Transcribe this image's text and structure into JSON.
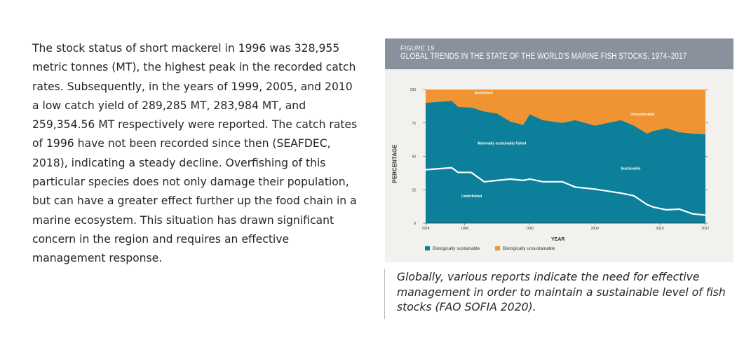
{
  "body_text": "The stock status of short mackerel in 1996 was 328,955 metric tonnes (MT), the highest peak in the recorded catch rates. Subsequently, in the years of 1999, 2005, and 2010 a low catch yield of 289,285 MT, 283,984 MT, and 259,354.56 MT respectively were reported. The catch rates of 1996 have not been recorded since then (SEAFDEC, 2018), indicating a steady decline. Overfishing of this particular species does not only damage their population, but can have a greater effect further up the food chain in a marine ecosystem. This situation has drawn significant concern in the region and requires an effective management response.",
  "figure": {
    "number": "FIGURE 19",
    "title": "GLOBAL TRENDS IN THE STATE OF THE WORLD'S MARINE FISH STOCKS, 1974–2017"
  },
  "chart_data": {
    "type": "area",
    "title": "GLOBAL TRENDS IN THE STATE OF THE WORLD'S MARINE FISH STOCKS, 1974–2017",
    "xlabel": "YEAR",
    "ylabel": "PERCENTAGE",
    "xlim": [
      1974,
      2017
    ],
    "ylim": [
      0,
      100
    ],
    "yticks": [
      "0",
      "25",
      "50",
      "75",
      "100"
    ],
    "xticks": [
      "1974",
      "1980",
      "1990",
      "2000",
      "2010",
      "2017"
    ],
    "colors": {
      "sustainable": "#0c7f9a",
      "unsustainable": "#ef9333",
      "line": "#ffffff"
    },
    "x": [
      1974,
      1978,
      1979,
      1981,
      1983,
      1985,
      1987,
      1989,
      1990,
      1992,
      1995,
      1997,
      2000,
      2004,
      2006,
      2008,
      2009,
      2011,
      2013,
      2015,
      2017
    ],
    "series": [
      {
        "name": "Biologically sustainable",
        "values": [
          90,
          91.5,
          87,
          86.5,
          83.5,
          82,
          76,
          73.5,
          81.5,
          77,
          75,
          77,
          73,
          77,
          73,
          67,
          69,
          71,
          68,
          67,
          66.5
        ]
      },
      {
        "name": "Maximally sustainably fished",
        "values": [
          40,
          41.5,
          38,
          38,
          31,
          32,
          33,
          32,
          33,
          31,
          31,
          27,
          25.5,
          22.5,
          20.5,
          14,
          12,
          10,
          10.5,
          7,
          6
        ]
      }
    ],
    "annotations": [
      "Overfished",
      "Unsustainable",
      "Maximally sustainably fished",
      "Sustainable",
      "Underfished"
    ],
    "legend": {
      "position": "bottom",
      "items": [
        "Biologically sustainable",
        "Biologically unsustainable"
      ]
    }
  },
  "caption": "Globally, various reports indicate the need for effective management in order to maintain a sustainable level of fish stocks (FAO SOFIA 2020)."
}
